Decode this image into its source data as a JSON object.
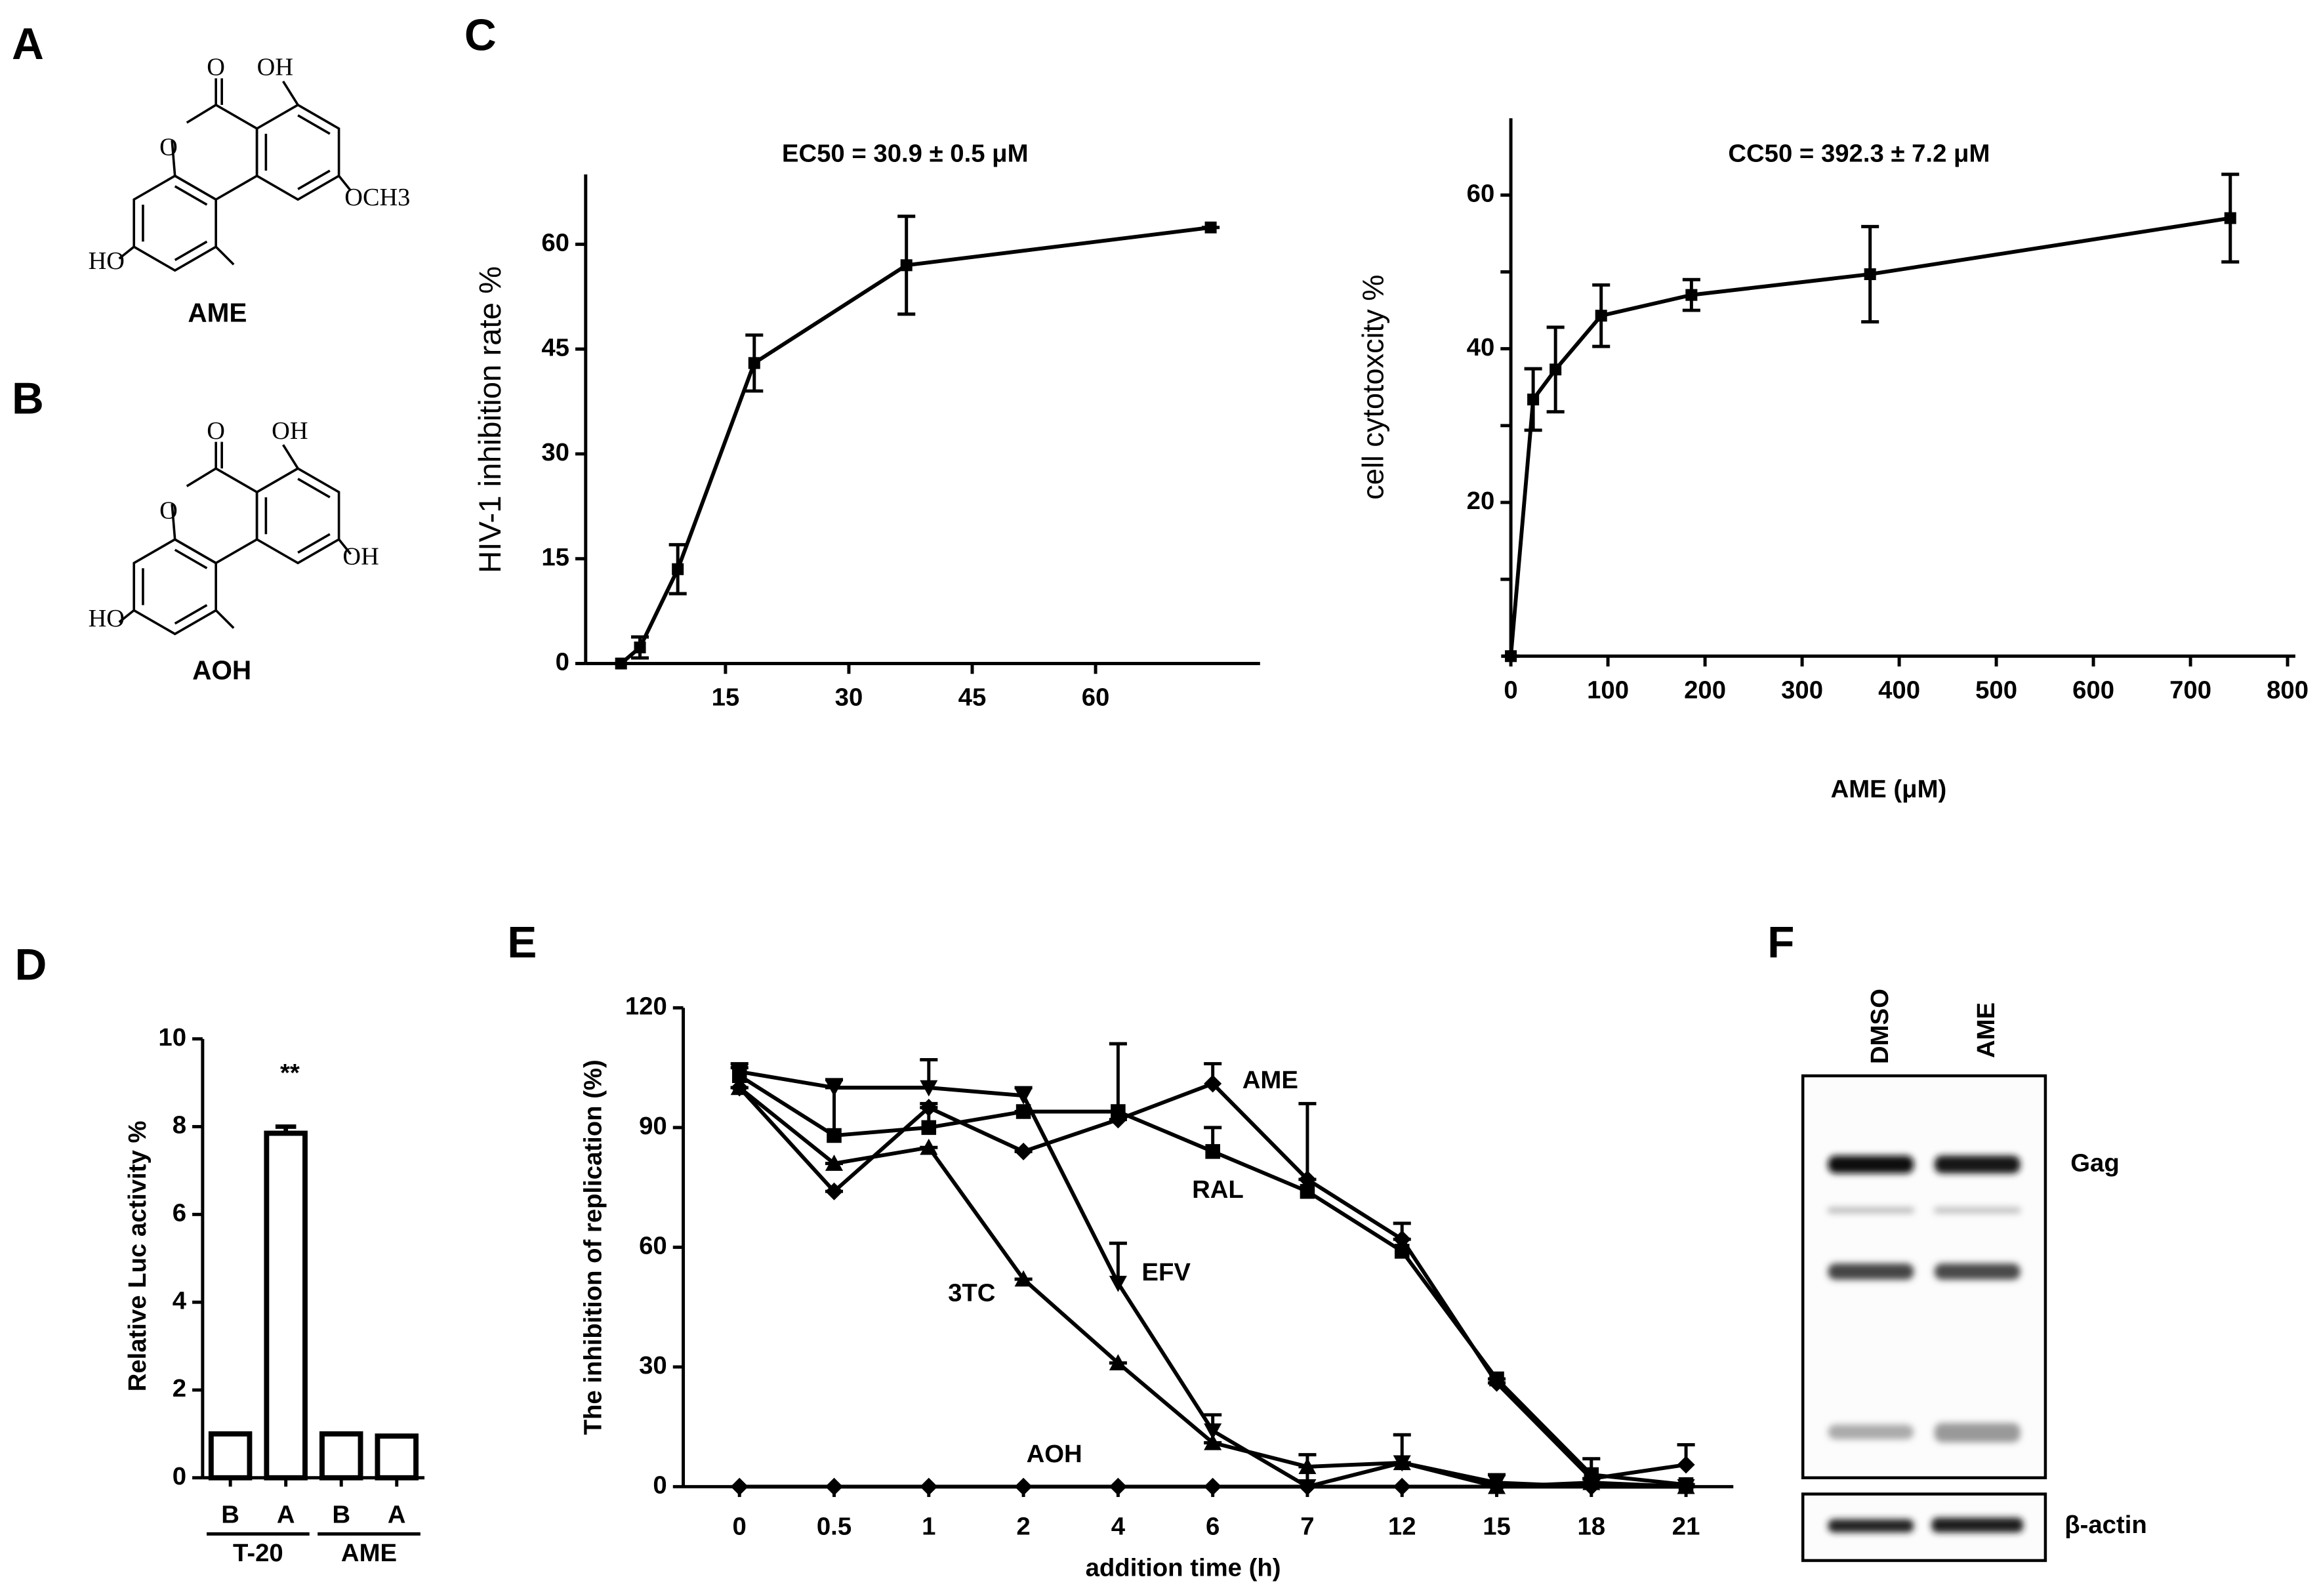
{
  "panel_labels": [
    "A",
    "B",
    "C",
    "D",
    "E",
    "F"
  ],
  "structures": [
    {
      "name": "AME",
      "atoms": [
        "O",
        "OH",
        "O",
        "OCH3",
        "HO"
      ]
    },
    {
      "name": "AOH",
      "atoms": [
        "O",
        "OH",
        "O",
        "OH",
        "HO"
      ]
    }
  ],
  "chart_data": [
    {
      "type": "line",
      "title": "EC50 = 30.9 ± 0.5 μM",
      "ylabel": "HIV-1 inhibition rate %",
      "x": [
        2.3,
        4.6,
        9.2,
        18.5,
        37,
        74
      ],
      "series": [
        {
          "color": "#000000",
          "marker": "square",
          "values": [
            0,
            2.3,
            13.5,
            43,
            57,
            62.4
          ],
          "errors": [
            0,
            1.5,
            3.5,
            4,
            7,
            0
          ]
        }
      ],
      "xlim": [
        -2,
        80
      ],
      "ylim": [
        0,
        70
      ],
      "xticks": [
        15,
        30,
        45,
        60
      ],
      "yticks": [
        0,
        15,
        30,
        45,
        60
      ],
      "error_bars": "both"
    },
    {
      "type": "line",
      "title": "CC50 = 392.3 ± 7.2 μM",
      "ylabel": "cell cytotoxcity %",
      "xlabel": "AME (μM)",
      "x": [
        0,
        23,
        46,
        93,
        186,
        370,
        741
      ],
      "series": [
        {
          "color": "#000000",
          "marker": "square",
          "values": [
            0,
            33.4,
            37.3,
            44.3,
            47,
            49.7,
            57
          ],
          "errors": [
            0,
            4,
            5.5,
            4,
            2,
            6.2,
            5.7
          ]
        }
      ],
      "xlim": [
        -10,
        808
      ],
      "ylim": [
        0,
        70
      ],
      "xticks": [
        0,
        100,
        200,
        300,
        400,
        500,
        600,
        700,
        800
      ],
      "yticks": [
        20,
        40,
        60
      ],
      "yminor": [
        10,
        30,
        50
      ],
      "error_bars": "both"
    },
    {
      "type": "bar",
      "ylabel": "Relative Luc activity %",
      "categories": [
        "B",
        "A",
        "B",
        "A"
      ],
      "groups": [
        "T-20",
        "AME"
      ],
      "values": [
        1,
        7.85,
        1,
        0.95
      ],
      "errors": [
        0,
        0.15,
        0,
        0
      ],
      "color": "#ffffff",
      "annotation": "**",
      "ylim": [
        0,
        10
      ],
      "yticks": [
        0,
        2,
        4,
        6,
        8,
        10
      ]
    },
    {
      "type": "line",
      "ylabel": "The inhibition of replication (%)",
      "xlabel": "addition time (h)",
      "categories": [
        "0",
        "0.5",
        "1",
        "2",
        "4",
        "6",
        "7",
        "12",
        "15",
        "18",
        "21"
      ],
      "series": [
        {
          "name": "AME",
          "color": "#000000",
          "marker": "diamond",
          "values": [
            100,
            74,
            95,
            84,
            92,
            101,
            77,
            62,
            26,
            2,
            5.5
          ],
          "errors": [
            0,
            0,
            0,
            0,
            0,
            5,
            0,
            0,
            0,
            0,
            5
          ]
        },
        {
          "name": "RAL",
          "color": "#000000",
          "marker": "square",
          "values": [
            103,
            88,
            90,
            94,
            94,
            84,
            74,
            59,
            27,
            3,
            0.5
          ],
          "errors": [
            2,
            12,
            6,
            0,
            17,
            6,
            22,
            7,
            0,
            4,
            0
          ]
        },
        {
          "name": "EFV",
          "color": "#000000",
          "marker": "triangle-down",
          "values": [
            104,
            100,
            100,
            98,
            51,
            14,
            0,
            6,
            1,
            0,
            0
          ],
          "errors": [
            2,
            2,
            7,
            2,
            10,
            4,
            8,
            7,
            2,
            2,
            0
          ]
        },
        {
          "name": "3TC",
          "color": "#000000",
          "marker": "triangle",
          "values": [
            100,
            81,
            85,
            52,
            31,
            11,
            5,
            6,
            0,
            1,
            0
          ],
          "errors": [
            0,
            0,
            0,
            0,
            0,
            0,
            0,
            0,
            0,
            0,
            0
          ]
        },
        {
          "name": "AOH",
          "color": "#000000",
          "marker": "diamond",
          "values": [
            0,
            0,
            0,
            0,
            0,
            0,
            0,
            0,
            0,
            0,
            0
          ],
          "errors": [
            0,
            0,
            0,
            0,
            0,
            0,
            0,
            0,
            0,
            0,
            0
          ]
        }
      ],
      "ylim": [
        0,
        120
      ],
      "yticks": [
        0,
        30,
        60,
        90,
        120
      ],
      "error_bars": "up"
    }
  ],
  "blot": {
    "lanes": [
      "DMSO",
      "AME"
    ],
    "bands": [
      "Gag",
      "β-actin"
    ]
  }
}
